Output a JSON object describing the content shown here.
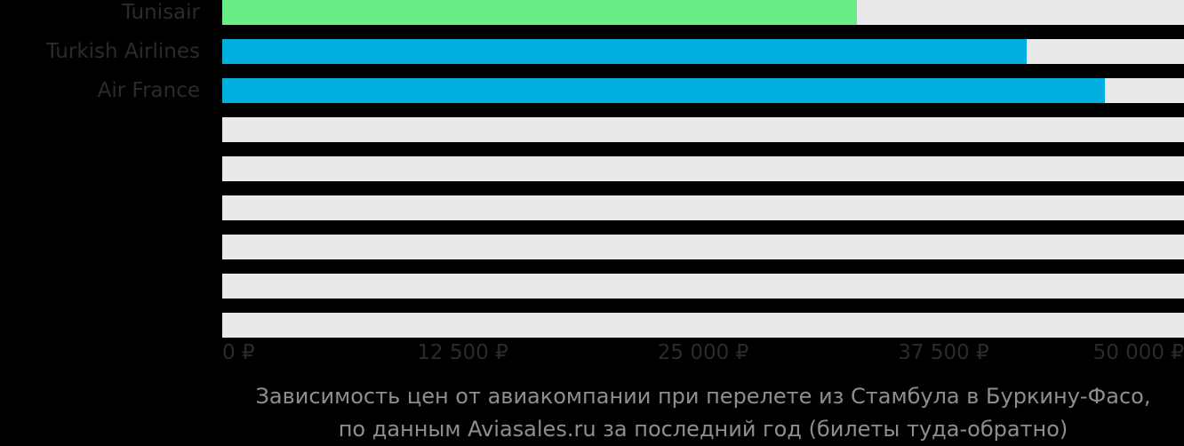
{
  "colors": {
    "background": "#000000",
    "bar_green": "#69ED85",
    "bar_blue": "#00AFDD",
    "track": "#E9E9EB",
    "category_label": "#2B2B2B",
    "axis_label": "#2B2B2B",
    "caption_text": "#8E8E8E"
  },
  "chart_data": {
    "type": "bar",
    "orientation": "horizontal",
    "title": "Зависимость цен от авиакомпании при перелете из Стамбула в Буркину-Фасо, по данным Aviasales.ru за последний год (билеты туда-обратно)",
    "title_lines": [
      "Зависимость цен от авиакомпании при перелете из Стамбула в Буркину-Фасо,",
      "по данным Aviasales.ru за последний год (билеты туда-обратно)"
    ],
    "xlabel": "",
    "ylabel": "",
    "xlim": [
      0,
      50000
    ],
    "grid": false,
    "legend": false,
    "currency_symbol": "₽",
    "x_ticks": [
      {
        "value": 0,
        "label": "0 ₽"
      },
      {
        "value": 12500,
        "label": "12 500 ₽"
      },
      {
        "value": 25000,
        "label": "25 000 ₽"
      },
      {
        "value": 37500,
        "label": "37 500 ₽"
      },
      {
        "value": 50000,
        "label": "50 000 ₽"
      }
    ],
    "rows": [
      {
        "label": "Tunisair",
        "value": 33000,
        "color": "#69ED85"
      },
      {
        "label": "Turkish Airlines",
        "value": 41800,
        "color": "#00AFDD"
      },
      {
        "label": "Air France",
        "value": 45900,
        "color": "#00AFDD"
      },
      {
        "label": "",
        "value": null,
        "color": null
      },
      {
        "label": "",
        "value": null,
        "color": null
      },
      {
        "label": "",
        "value": null,
        "color": null
      },
      {
        "label": "",
        "value": null,
        "color": null
      },
      {
        "label": "",
        "value": null,
        "color": null
      },
      {
        "label": "",
        "value": null,
        "color": null
      }
    ]
  }
}
